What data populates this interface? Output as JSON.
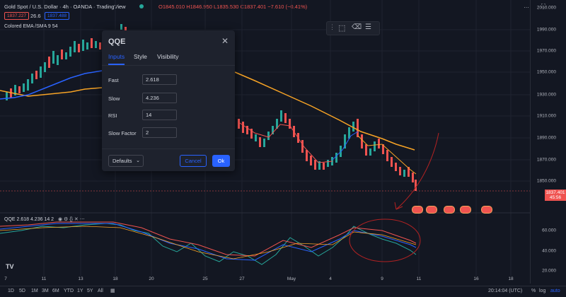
{
  "header": {
    "symbol_title": "Gold Spot / U.S. Dollar · 4h · OANDA · TradingView",
    "ohlc": "O1845.010 H1846.950 L1835.530 C1837.401 −7.610 (−0.41%)",
    "bid": "1837.227",
    "spread": "26.6",
    "ask": "1837.488",
    "indicator_label": "Colored EMA /SMA 9 54"
  },
  "price_axis": {
    "ticks": [
      "2010.000",
      "1990.000",
      "1970.000",
      "1950.000",
      "1930.000",
      "1910.000",
      "1890.000",
      "1870.000",
      "1850.000"
    ],
    "current_price": "1837.401",
    "countdown": "45:56"
  },
  "oscillator": {
    "label": "QQE 2.618 4.236 14 2",
    "ticks": [
      "60.000",
      "40.000",
      "20.000"
    ]
  },
  "time_axis": {
    "ticks": [
      "7",
      "11",
      "13",
      "18",
      "20",
      "25",
      "27",
      "May",
      "4",
      "9",
      "11",
      "16",
      "18"
    ]
  },
  "bottom_bar": {
    "ranges": [
      "1D",
      "5D",
      "1M",
      "3M",
      "6M",
      "YTD",
      "1Y",
      "5Y",
      "All"
    ],
    "clock": "20:14:04 (UTC)",
    "pct": "%",
    "log": "log",
    "auto": "auto"
  },
  "dialog": {
    "title": "QQE",
    "tabs": [
      "Inputs",
      "Style",
      "Visibility"
    ],
    "fields": [
      {
        "label": "Fast",
        "value": "2.618"
      },
      {
        "label": "Slow",
        "value": "4.236"
      },
      {
        "label": "RSI",
        "value": "14"
      },
      {
        "label": "Slow Factor",
        "value": "2"
      }
    ],
    "defaults_label": "Defaults",
    "cancel_label": "Cancel",
    "ok_label": "Ok"
  },
  "colors": {
    "background": "#131722",
    "accent": "#2962ff",
    "up": "#26a69a",
    "down": "#ef5350",
    "ema": "#2962ff",
    "sma": "#f7a325",
    "annotation": "#b22222"
  }
}
